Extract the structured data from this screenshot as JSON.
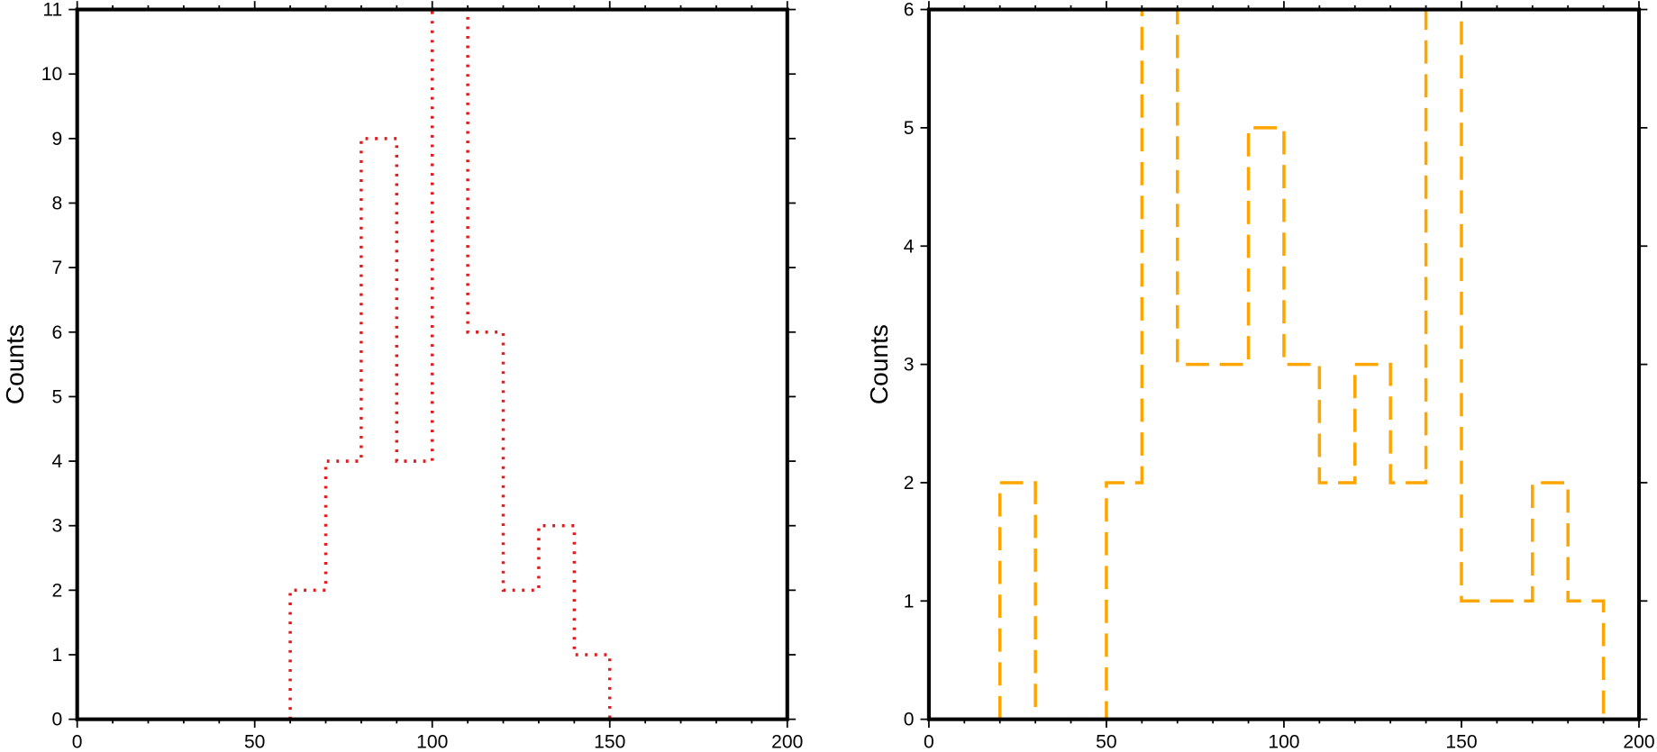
{
  "chart_data": [
    {
      "type": "bar",
      "style": "step histogram, dotted outline",
      "color": "#e41a1c",
      "bin_edges": [
        60,
        70,
        80,
        90,
        100,
        110,
        120,
        130,
        140,
        150
      ],
      "values": [
        2,
        4,
        9,
        4,
        11,
        6,
        2,
        3,
        1
      ],
      "xlim": [
        0,
        200
      ],
      "ylim": [
        0,
        11
      ],
      "xticks": [
        0,
        50,
        100,
        150,
        200
      ],
      "yticks": [
        0,
        1,
        2,
        3,
        4,
        5,
        6,
        7,
        8,
        9,
        10,
        11
      ],
      "xlabel": "",
      "ylabel": "Counts",
      "grid": false
    },
    {
      "type": "bar",
      "style": "step histogram, dashed outline",
      "color": "#ffa500",
      "bin_edges": [
        20,
        30,
        40,
        50,
        60,
        70,
        80,
        90,
        100,
        110,
        120,
        130,
        140,
        150,
        160,
        170,
        180,
        190
      ],
      "values": [
        2,
        0,
        0,
        2,
        6,
        3,
        3,
        5,
        3,
        2,
        3,
        2,
        6,
        1,
        1,
        2,
        1
      ],
      "xlim": [
        0,
        200
      ],
      "ylim": [
        0,
        6
      ],
      "xticks": [
        0,
        50,
        100,
        150,
        200
      ],
      "yticks": [
        0,
        1,
        2,
        3,
        4,
        5,
        6
      ],
      "xlabel": "",
      "ylabel": "Counts",
      "grid": false
    }
  ]
}
